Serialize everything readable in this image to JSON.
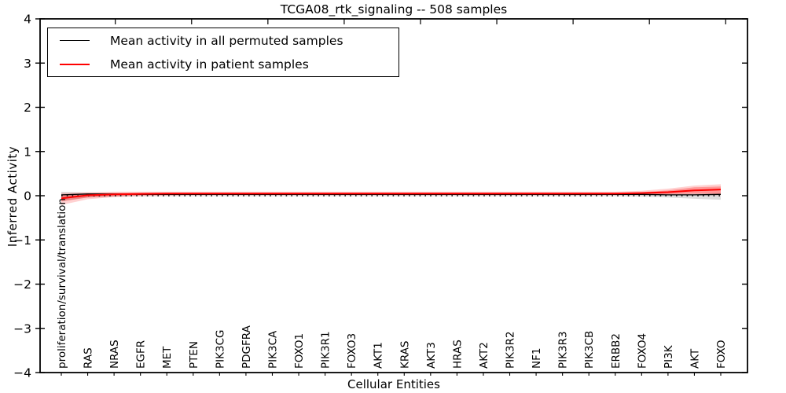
{
  "figure": {
    "title": "TCGA08_rtk_signaling -- 508 samples",
    "xlabel": "Cellular Entities",
    "ylabel": "Inferred Activity",
    "background_color": "#ffffff",
    "axis_color": "#000000"
  },
  "legend": {
    "items": [
      {
        "label": "Mean activity in all permuted samples",
        "color": "#000000",
        "line_width": 1.5
      },
      {
        "label": "Mean activity in patient samples",
        "color": "#ff0000",
        "line_width": 2
      }
    ]
  },
  "chart_data": {
    "type": "line",
    "title": "TCGA08_rtk_signaling -- 508 samples",
    "xlabel": "Cellular Entities",
    "ylabel": "Inferred Activity",
    "ylim": [
      -4,
      4
    ],
    "yticks": [
      4,
      3,
      2,
      1,
      0,
      -1,
      -2,
      -3,
      -4
    ],
    "grid": false,
    "legend_position": "upper left",
    "zero_reference_line": {
      "y": 0,
      "style": "dotted",
      "color": "#000000"
    },
    "categories": [
      "proliferation/survival/translation",
      "RAS",
      "NRAS",
      "EGFR",
      "MET",
      "PTEN",
      "PIK3CG",
      "PDGFRA",
      "PIK3CA",
      "FOXO1",
      "PIK3R1",
      "FOXO3",
      "AKT1",
      "KRAS",
      "AKT3",
      "HRAS",
      "AKT2",
      "PIK3R2",
      "NF1",
      "PIK3R3",
      "PIK3CB",
      "ERBB2",
      "FOXO4",
      "PI3K",
      "AKT",
      "FOXO"
    ],
    "series": [
      {
        "name": "Mean activity in all permuted samples",
        "color": "#000000",
        "line_width": 1.3,
        "values": [
          0.02,
          0.04,
          0.04,
          0.03,
          0.03,
          0.03,
          0.03,
          0.03,
          0.03,
          0.03,
          0.03,
          0.03,
          0.03,
          0.03,
          0.03,
          0.03,
          0.03,
          0.03,
          0.03,
          0.03,
          0.03,
          0.03,
          0.03,
          0.02,
          0.02,
          0.03
        ],
        "band": {
          "lo": [
            -0.12,
            -0.04,
            -0.02,
            -0.01,
            -0.01,
            -0.01,
            -0.01,
            -0.01,
            -0.01,
            -0.01,
            -0.01,
            -0.01,
            -0.01,
            -0.01,
            -0.01,
            -0.01,
            -0.01,
            -0.01,
            -0.01,
            -0.01,
            -0.01,
            -0.01,
            -0.02,
            -0.04,
            -0.07,
            -0.09
          ],
          "hi": [
            0.09,
            0.07,
            0.06,
            0.06,
            0.06,
            0.06,
            0.06,
            0.06,
            0.06,
            0.06,
            0.06,
            0.06,
            0.06,
            0.06,
            0.06,
            0.06,
            0.06,
            0.06,
            0.06,
            0.06,
            0.06,
            0.06,
            0.06,
            0.05,
            0.05,
            0.06
          ],
          "fill_opacity": 0.13
        }
      },
      {
        "name": "Mean activity in patient samples",
        "color": "#ff0000",
        "line_width": 2,
        "values": [
          -0.06,
          0.01,
          0.03,
          0.04,
          0.05,
          0.05,
          0.05,
          0.05,
          0.05,
          0.05,
          0.05,
          0.05,
          0.05,
          0.05,
          0.05,
          0.05,
          0.05,
          0.05,
          0.05,
          0.05,
          0.05,
          0.05,
          0.06,
          0.08,
          0.12,
          0.14
        ],
        "band_outer": {
          "lo": [
            -0.21,
            -0.08,
            -0.03,
            -0.01,
            0.0,
            0.01,
            0.01,
            0.01,
            0.01,
            0.01,
            0.01,
            0.01,
            0.01,
            0.01,
            0.01,
            0.01,
            0.01,
            0.01,
            0.01,
            0.01,
            0.01,
            0.01,
            0.01,
            0.02,
            0.02,
            0.01
          ],
          "hi": [
            0.06,
            0.08,
            0.09,
            0.09,
            0.09,
            0.09,
            0.09,
            0.09,
            0.09,
            0.09,
            0.09,
            0.09,
            0.09,
            0.09,
            0.09,
            0.09,
            0.09,
            0.09,
            0.09,
            0.09,
            0.09,
            0.09,
            0.11,
            0.16,
            0.23,
            0.26
          ],
          "fill_opacity": 0.18
        },
        "band_inner": {
          "lo": [
            -0.13,
            -0.04,
            -0.01,
            0.01,
            0.02,
            0.02,
            0.02,
            0.02,
            0.02,
            0.02,
            0.02,
            0.02,
            0.02,
            0.02,
            0.02,
            0.02,
            0.02,
            0.02,
            0.02,
            0.02,
            0.02,
            0.02,
            0.03,
            0.04,
            0.05,
            0.04
          ],
          "hi": [
            0.01,
            0.05,
            0.06,
            0.07,
            0.07,
            0.07,
            0.07,
            0.07,
            0.07,
            0.07,
            0.07,
            0.07,
            0.07,
            0.07,
            0.07,
            0.07,
            0.07,
            0.07,
            0.07,
            0.07,
            0.07,
            0.07,
            0.08,
            0.12,
            0.19,
            0.21
          ],
          "fill_opacity": 0.28
        }
      }
    ]
  }
}
